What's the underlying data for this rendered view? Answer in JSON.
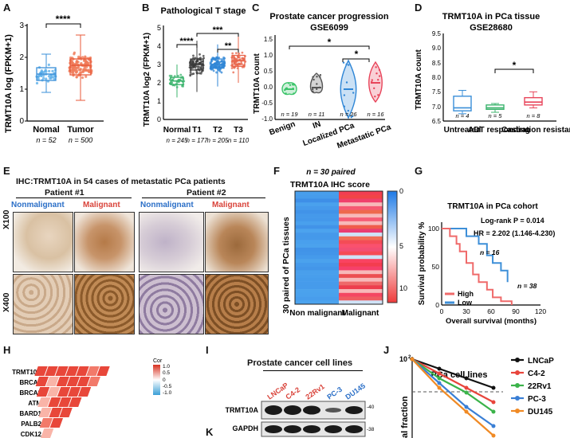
{
  "panels": {
    "A": {
      "letter": "A",
      "ylabel": "TRMT10A log (FPKM+1)",
      "yticks": [
        "0",
        "1",
        "2",
        "3"
      ],
      "sig": "****",
      "groups": [
        {
          "name": "Nomal",
          "n": "n = 52"
        },
        {
          "name": "Tumor",
          "n": "n = 500"
        }
      ]
    },
    "B": {
      "letter": "B",
      "title": "Pathological T stage",
      "ylabel": "TRMT10A  log2 (FPKM+1)",
      "yticks": [
        "0",
        "1",
        "2",
        "3",
        "4",
        "5"
      ],
      "sigs": [
        "****",
        "***",
        "**"
      ],
      "groups": [
        {
          "name": "Normal",
          "n": "n = 245"
        },
        {
          "name": "T1",
          "n": "n = 177"
        },
        {
          "name": "T2",
          "n": "n = 205"
        },
        {
          "name": "T3",
          "n": "n = 110"
        }
      ]
    },
    "C": {
      "letter": "C",
      "title": "Prostate cancer progression",
      "subtitle": "GSE6099",
      "ylabel": "TRMT10A count",
      "yticks": [
        "-1.0",
        "-0.5",
        "0.0",
        "0.5",
        "1.0",
        "1.5"
      ],
      "sigs": [
        "*",
        "*"
      ],
      "groups": [
        {
          "name": "Benign",
          "n": "n = 19"
        },
        {
          "name": "IN",
          "n": "n = 11"
        },
        {
          "name": "Localized PCa",
          "n": "n = 26"
        },
        {
          "name": "Metastatic PCa",
          "n": "n = 16"
        }
      ]
    },
    "D": {
      "letter": "D",
      "title": "TRMT10A in PCa tissue",
      "subtitle": "GSE28680",
      "ylabel": "TRMT10A count",
      "yticks": [
        "6.5",
        "7.0",
        "7.5",
        "8.0",
        "8.5",
        "9.0",
        "9.5"
      ],
      "sig": "*",
      "groups": [
        {
          "name": "Untreated",
          "n": "n = 4"
        },
        {
          "name": "ADT responding",
          "n": "n = 5"
        },
        {
          "name": "Castration resistant",
          "n": "n = 8"
        }
      ]
    },
    "E": {
      "letter": "E",
      "title": "IHC:TRMT10A in 54 cases of metastatic PCa patients",
      "patients": [
        "Patient #1",
        "Patient #2"
      ],
      "columns": [
        "Nonmalignant",
        "Malignant",
        "Nonmalignant",
        "Malignant"
      ],
      "rows": [
        "X100",
        "X400"
      ]
    },
    "F": {
      "letter": "F",
      "note": "n = 30 paired",
      "title": "TRMT10A IHC score",
      "ylabel": "30 paired of PCa tissues",
      "xlabels": [
        "Non malignant",
        "Malignant"
      ],
      "scale": [
        "0",
        "5",
        "10"
      ]
    },
    "G": {
      "letter": "G",
      "title": "TRMT10A in PCa cohort",
      "stat1": "Log-rank P = 0.014",
      "stat2": "HR = 2.202 (1.146-4.230)",
      "ylabel": "Survival probability %",
      "xlabel": "Overall survival (months)",
      "xticks": [
        "0",
        "30",
        "60",
        "90",
        "120"
      ],
      "yticks": [
        "0",
        "50",
        "100"
      ],
      "n_high": "n = 38",
      "n_low": "n = 16",
      "legend": [
        {
          "name": "High",
          "color": "#ef6a6a"
        },
        {
          "name": "Low",
          "color": "#3d8fd8"
        }
      ]
    },
    "H": {
      "letter": "H",
      "genes": [
        "TRMT10A",
        "BRCA1",
        "BRCA2",
        "ATM",
        "BARD1",
        "PALB2",
        "CDK12"
      ],
      "legend_title": "Cor",
      "legend_ticks": [
        "1.0",
        "0.5",
        "0",
        "-0.5",
        "-1.0"
      ]
    },
    "I": {
      "letter": "I",
      "title": "Prostate cancer cell lines",
      "cell_lines": [
        "LNCaP",
        "C4-2",
        "22Rv1",
        "PC-3",
        "DU145"
      ],
      "bands": [
        "TRMT10A",
        "GAPDH"
      ],
      "markers": [
        "-40",
        "-38"
      ]
    },
    "J": {
      "letter": "J",
      "title": "PCa  cell lines",
      "ylabel": "al fraction",
      "ytick": "10",
      "ysup": "2",
      "legend": [
        {
          "name": "LNCaP",
          "color": "#111111"
        },
        {
          "name": "C4-2",
          "color": "#e8453c"
        },
        {
          "name": "22Rv1",
          "color": "#3bb34a"
        },
        {
          "name": "PC-3",
          "color": "#3a7fd5"
        },
        {
          "name": "DU145",
          "color": "#f08a24"
        }
      ]
    },
    "K": {
      "letter": "K"
    }
  },
  "chart_data": [
    {
      "type": "box",
      "title": "",
      "ylabel": "TRMT10A log (FPKM+1)",
      "categories": [
        "Nomal",
        "Tumor"
      ],
      "boxes": [
        {
          "min": 0.9,
          "q1": 1.3,
          "median": 1.5,
          "q3": 1.65,
          "max": 2.1
        },
        {
          "min": 0.5,
          "q1": 1.5,
          "median": 1.75,
          "q3": 1.95,
          "max": 2.7
        }
      ],
      "ylim": [
        0,
        3
      ]
    },
    {
      "type": "box",
      "title": "Pathological T stage",
      "ylabel": "TRMT10A  log2 (FPKM+1)",
      "categories": [
        "Normal",
        "T1",
        "T2",
        "T3"
      ],
      "boxes": [
        {
          "min": 1.2,
          "q1": 1.9,
          "median": 2.1,
          "q3": 2.3,
          "max": 3.0
        },
        {
          "min": 1.5,
          "q1": 2.7,
          "median": 3.0,
          "q3": 3.3,
          "max": 4.3
        },
        {
          "min": 1.8,
          "q1": 2.8,
          "median": 3.0,
          "q3": 3.3,
          "max": 4.1
        },
        {
          "min": 2.0,
          "q1": 2.9,
          "median": 3.2,
          "q3": 3.5,
          "max": 4.6
        }
      ],
      "ylim": [
        0,
        5
      ]
    },
    {
      "type": "violin",
      "title": "Prostate cancer progression",
      "ylabel": "TRMT10A count",
      "categories": [
        "Benign",
        "IN",
        "Localized PCa",
        "Metastatic PCa"
      ],
      "medians": [
        0.0,
        0.05,
        0.0,
        0.2
      ],
      "ranges": [
        [
          -0.15,
          0.2
        ],
        [
          -0.1,
          0.5
        ],
        [
          -0.9,
          0.9
        ],
        [
          -0.4,
          0.85
        ]
      ],
      "ylim": [
        -1.0,
        1.5
      ]
    },
    {
      "type": "box",
      "title": "TRMT10A in PCa tissue",
      "ylabel": "TRMT10A count",
      "categories": [
        "Untreated",
        "ADT responding",
        "Castration resistant"
      ],
      "boxes": [
        {
          "min": 6.75,
          "q1": 6.85,
          "median": 6.95,
          "q3": 7.35,
          "max": 7.55
        },
        {
          "min": 6.8,
          "q1": 6.9,
          "median": 6.95,
          "q3": 7.05,
          "max": 7.1
        },
        {
          "min": 6.95,
          "q1": 7.05,
          "median": 7.15,
          "q3": 7.3,
          "max": 7.5
        }
      ],
      "ylim": [
        6.5,
        9.5
      ]
    },
    {
      "type": "line",
      "title": "TRMT10A in PCa cohort",
      "xlabel": "Overall survival (months)",
      "ylabel": "Survival probability %",
      "xlim": [
        0,
        120
      ],
      "ylim": [
        0,
        100
      ],
      "series": [
        {
          "name": "High",
          "x": [
            0,
            8,
            10,
            18,
            22,
            30,
            38,
            45,
            55,
            62,
            72,
            85
          ],
          "y": [
            100,
            100,
            90,
            80,
            70,
            55,
            40,
            30,
            20,
            10,
            5,
            0
          ]
        },
        {
          "name": "Low",
          "x": [
            0,
            25,
            30,
            45,
            55,
            62,
            72,
            80
          ],
          "y": [
            100,
            100,
            90,
            80,
            65,
            55,
            45,
            30
          ]
        }
      ]
    },
    {
      "type": "line",
      "title": "PCa  cell lines",
      "ylabel": "al fraction",
      "series": [
        {
          "name": "LNCaP",
          "y": [
            100,
            90,
            80,
            70
          ]
        },
        {
          "name": "C4-2",
          "y": [
            100,
            85,
            70,
            55
          ]
        },
        {
          "name": "22Rv1",
          "y": [
            100,
            80,
            65,
            45
          ]
        },
        {
          "name": "PC-3",
          "y": [
            100,
            75,
            50,
            30
          ]
        },
        {
          "name": "DU145",
          "y": [
            100,
            70,
            45,
            20
          ]
        }
      ]
    }
  ]
}
